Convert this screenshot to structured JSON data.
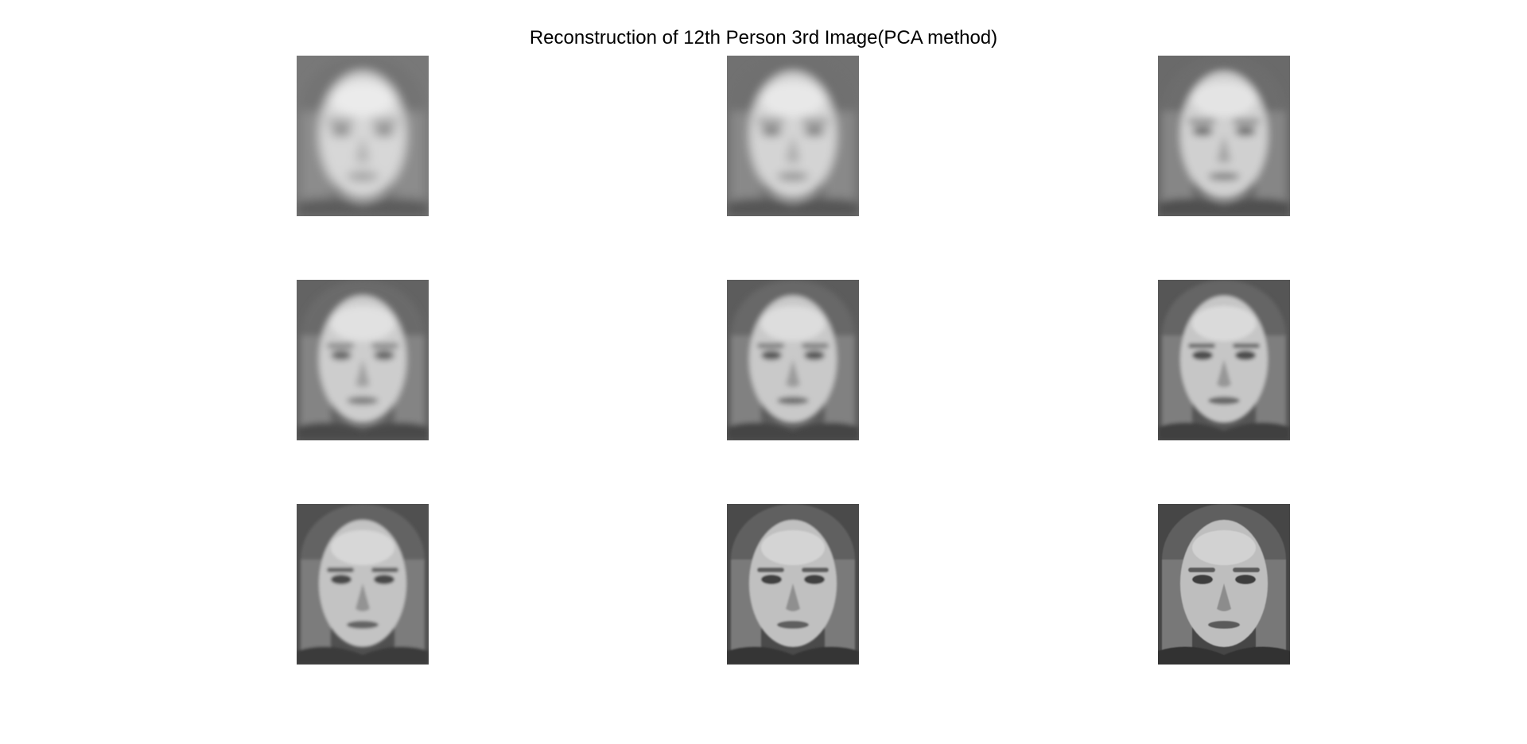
{
  "figure": {
    "title": "Reconstruction of 12th Person 3rd Image(PCA method)"
  },
  "panels": [
    {
      "name": "reconstruction-1",
      "sharpness": 0.0
    },
    {
      "name": "reconstruction-2",
      "sharpness": 0.14
    },
    {
      "name": "reconstruction-3",
      "sharpness": 0.28
    },
    {
      "name": "reconstruction-4",
      "sharpness": 0.42
    },
    {
      "name": "reconstruction-5",
      "sharpness": 0.56
    },
    {
      "name": "reconstruction-6",
      "sharpness": 0.68
    },
    {
      "name": "reconstruction-7",
      "sharpness": 0.8
    },
    {
      "name": "reconstruction-8",
      "sharpness": 0.92
    },
    {
      "name": "reconstruction-9",
      "sharpness": 1.0
    }
  ]
}
